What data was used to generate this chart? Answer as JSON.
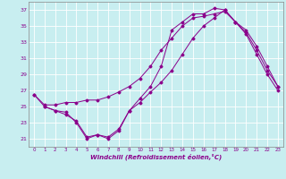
{
  "xlabel": "Windchill (Refroidissement éolien,°C)",
  "bg_color": "#c8eef0",
  "grid_color": "#ffffff",
  "line_color": "#8b008b",
  "xlim": [
    -0.5,
    23.5
  ],
  "ylim": [
    20.0,
    38.0
  ],
  "xticks": [
    0,
    1,
    2,
    3,
    4,
    5,
    6,
    7,
    8,
    9,
    10,
    11,
    12,
    13,
    14,
    15,
    16,
    17,
    18,
    19,
    20,
    21,
    22,
    23
  ],
  "yticks": [
    21,
    23,
    25,
    27,
    29,
    31,
    33,
    35,
    37
  ],
  "line1_x": [
    0,
    1,
    2,
    3,
    4,
    5,
    6,
    7,
    8,
    9,
    10,
    11,
    12,
    13,
    14,
    15,
    16,
    17,
    18,
    19,
    20,
    21,
    22,
    23
  ],
  "line1_y": [
    26.5,
    25.0,
    24.5,
    24.3,
    23.0,
    21.0,
    21.5,
    21.0,
    22.0,
    24.5,
    26.0,
    27.5,
    30.0,
    34.5,
    35.5,
    36.5,
    36.5,
    37.2,
    37.0,
    35.5,
    34.0,
    31.5,
    29.0,
    27.0
  ],
  "line2_x": [
    0,
    1,
    2,
    3,
    4,
    5,
    6,
    7,
    8,
    9,
    10,
    11,
    12,
    13,
    14,
    15,
    16,
    17,
    18,
    19,
    20,
    21,
    22,
    23
  ],
  "line2_y": [
    26.5,
    25.2,
    25.2,
    25.5,
    25.5,
    25.8,
    25.8,
    26.2,
    26.8,
    27.5,
    28.5,
    30.0,
    32.0,
    33.5,
    35.0,
    36.0,
    36.2,
    36.5,
    36.8,
    35.5,
    34.5,
    32.5,
    30.0,
    27.5
  ],
  "line3_x": [
    1,
    2,
    3,
    4,
    5,
    6,
    7,
    8,
    9,
    10,
    11,
    12,
    13,
    14,
    15,
    16,
    17,
    18,
    19,
    20,
    21,
    22,
    23
  ],
  "line3_y": [
    25.0,
    24.5,
    24.0,
    23.2,
    21.2,
    21.5,
    21.2,
    22.2,
    24.5,
    25.5,
    26.8,
    28.0,
    29.5,
    31.5,
    33.5,
    35.0,
    36.0,
    37.0,
    35.5,
    34.2,
    32.0,
    29.5,
    27.5
  ]
}
